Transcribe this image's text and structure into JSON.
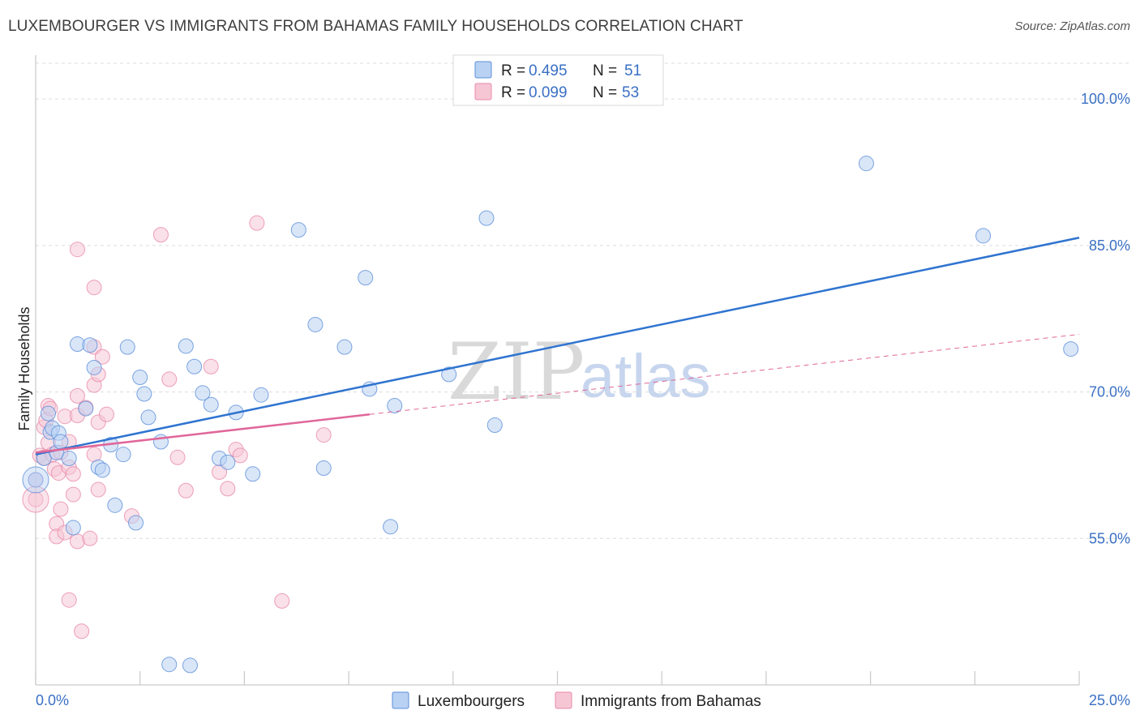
{
  "title": "LUXEMBOURGER VS IMMIGRANTS FROM BAHAMAS FAMILY HOUSEHOLDS CORRELATION CHART",
  "source": "Source: ZipAtlas.com",
  "watermark": {
    "zip": "ZIP",
    "atlas": "atlas"
  },
  "colors": {
    "blue": "#5b8fd9",
    "blue_fill": "#b9d1f3",
    "blue_line": "#2f74d0",
    "pink": "#e88aa9",
    "pink_fill": "#f6c6d5",
    "pink_line": "#e0679a",
    "tick": "#3a70c4"
  },
  "legend": {
    "r_label": "R =",
    "n_label": "N =",
    "series": [
      {
        "r": "0.495",
        "n": "51"
      },
      {
        "r": "0.099",
        "n": "53"
      }
    ]
  },
  "chart_data": {
    "type": "scatter",
    "xlabel": "",
    "ylabel": "Family Households",
    "xlim": [
      0,
      25
    ],
    "ylim": [
      40,
      103.5
    ],
    "x_tick_labels": [
      "0.0%",
      "25.0%"
    ],
    "y_ticks": [
      55,
      70,
      85,
      100
    ],
    "y_tick_labels": [
      "55.0%",
      "70.0%",
      "85.0%",
      "100.0%"
    ],
    "grid": true,
    "series": [
      {
        "name": "Luxembourgers",
        "color": "blue",
        "points": [
          [
            0.0,
            61.0
          ],
          [
            0.2,
            63.2
          ],
          [
            0.3,
            67.8
          ],
          [
            0.35,
            65.9
          ],
          [
            0.4,
            66.3
          ],
          [
            0.5,
            63.8
          ],
          [
            0.55,
            65.8
          ],
          [
            0.6,
            64.9
          ],
          [
            0.8,
            63.2
          ],
          [
            0.9,
            56.1
          ],
          [
            1.0,
            74.9
          ],
          [
            1.2,
            68.3
          ],
          [
            1.3,
            74.8
          ],
          [
            1.4,
            72.5
          ],
          [
            1.5,
            62.3
          ],
          [
            1.6,
            62.0
          ],
          [
            1.8,
            64.6
          ],
          [
            1.9,
            58.4
          ],
          [
            2.1,
            63.6
          ],
          [
            2.2,
            74.6
          ],
          [
            2.4,
            56.6
          ],
          [
            2.5,
            71.5
          ],
          [
            2.6,
            69.8
          ],
          [
            2.7,
            67.4
          ],
          [
            3.0,
            64.9
          ],
          [
            3.2,
            42.1
          ],
          [
            3.6,
            74.7
          ],
          [
            3.7,
            42.0
          ],
          [
            3.8,
            72.6
          ],
          [
            4.0,
            69.9
          ],
          [
            4.2,
            68.7
          ],
          [
            4.4,
            63.2
          ],
          [
            4.6,
            62.8
          ],
          [
            4.8,
            67.9
          ],
          [
            5.2,
            61.6
          ],
          [
            5.4,
            69.7
          ],
          [
            6.3,
            86.6
          ],
          [
            6.7,
            76.9
          ],
          [
            6.9,
            62.2
          ],
          [
            7.4,
            74.6
          ],
          [
            7.9,
            81.7
          ],
          [
            8.0,
            70.3
          ],
          [
            8.6,
            68.6
          ],
          [
            8.5,
            56.2
          ],
          [
            9.9,
            71.8
          ],
          [
            10.8,
            87.8
          ],
          [
            11.0,
            66.6
          ],
          [
            19.9,
            93.4
          ],
          [
            22.7,
            86.0
          ],
          [
            24.8,
            74.4
          ],
          [
            0.0,
            61.0
          ]
        ]
      },
      {
        "name": "Immigrants from Bahamas",
        "color": "pink",
        "points": [
          [
            0.0,
            59.0
          ],
          [
            0.0,
            61.0
          ],
          [
            0.1,
            63.5
          ],
          [
            0.2,
            63.3
          ],
          [
            0.2,
            66.4
          ],
          [
            0.25,
            67.1
          ],
          [
            0.3,
            64.8
          ],
          [
            0.3,
            68.6
          ],
          [
            0.35,
            68.3
          ],
          [
            0.4,
            63.6
          ],
          [
            0.45,
            62.1
          ],
          [
            0.5,
            56.5
          ],
          [
            0.5,
            55.2
          ],
          [
            0.55,
            61.7
          ],
          [
            0.6,
            63.8
          ],
          [
            0.6,
            58.0
          ],
          [
            0.7,
            55.6
          ],
          [
            0.7,
            67.5
          ],
          [
            0.8,
            48.7
          ],
          [
            0.8,
            62.3
          ],
          [
            0.8,
            64.9
          ],
          [
            0.9,
            59.5
          ],
          [
            0.9,
            61.6
          ],
          [
            1.0,
            67.6
          ],
          [
            1.0,
            69.6
          ],
          [
            1.0,
            54.7
          ],
          [
            1.0,
            84.6
          ],
          [
            1.1,
            45.5
          ],
          [
            1.2,
            68.4
          ],
          [
            1.3,
            55.0
          ],
          [
            1.4,
            63.6
          ],
          [
            1.4,
            70.7
          ],
          [
            1.4,
            80.7
          ],
          [
            1.4,
            74.6
          ],
          [
            1.5,
            66.9
          ],
          [
            1.5,
            71.8
          ],
          [
            1.5,
            60.0
          ],
          [
            1.6,
            73.6
          ],
          [
            1.7,
            67.7
          ],
          [
            2.3,
            57.3
          ],
          [
            3.0,
            86.1
          ],
          [
            3.2,
            71.3
          ],
          [
            3.4,
            63.3
          ],
          [
            3.6,
            59.9
          ],
          [
            4.2,
            72.6
          ],
          [
            4.4,
            61.8
          ],
          [
            4.6,
            60.1
          ],
          [
            4.8,
            64.1
          ],
          [
            4.9,
            63.5
          ],
          [
            5.3,
            87.3
          ],
          [
            5.9,
            48.6
          ],
          [
            6.9,
            65.6
          ],
          [
            0.0,
            59.0
          ]
        ]
      }
    ],
    "trend_lines": [
      {
        "series": "Luxembourgers",
        "x": [
          0.0,
          25.0
        ],
        "y": [
          63.6,
          85.8
        ],
        "style": "solid"
      },
      {
        "series": "Immigrants from Bahamas",
        "x": [
          0.0,
          8.0
        ],
        "y": [
          63.8,
          67.7
        ],
        "style": "solid"
      },
      {
        "series": "Immigrants from Bahamas",
        "x": [
          8.0,
          25.0
        ],
        "y": [
          67.7,
          75.9
        ],
        "style": "dashed"
      }
    ]
  }
}
